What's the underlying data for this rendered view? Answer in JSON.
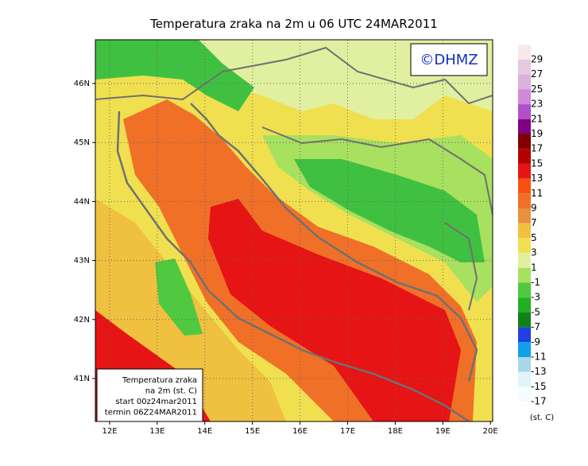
{
  "title": "Temperatura zraka na 2m u 06 UTC 24MAR2011",
  "logo": "©DHMZ",
  "info_box": {
    "lines": [
      "Temperatura zraka",
      "na 2m (st. C)",
      "start 00z24mar2011",
      "termin 06Z24MAR2011"
    ]
  },
  "axes": {
    "lon_labels": [
      "12E",
      "13E",
      "14E",
      "15E",
      "16E",
      "17E",
      "18E",
      "19E",
      "20E"
    ],
    "lat_labels": [
      "46N",
      "45N",
      "44N",
      "43N",
      "42N",
      "41N"
    ]
  },
  "colorbar": {
    "labels": [
      29,
      27,
      25,
      23,
      21,
      19,
      17,
      15,
      13,
      11,
      9,
      7,
      5,
      3,
      1,
      -1,
      -3,
      -5,
      -7,
      -9,
      -11,
      -13,
      -15,
      -17
    ],
    "colors": [
      "#f8e8e8",
      "#e8c8e0",
      "#dcb0dc",
      "#d088d8",
      "#b050c8",
      "#800080",
      "#800000",
      "#b40000",
      "#e61414",
      "#f85010",
      "#f07028",
      "#e89040",
      "#f0c040",
      "#f0e050",
      "#e0f0a0",
      "#a8e060",
      "#50c840",
      "#20b020",
      "#108018",
      "#2040e0",
      "#10a0e8",
      "#a8d8e8",
      "#e0f4f8",
      "#f4fcfc"
    ],
    "unit": "(st. C)"
  }
}
